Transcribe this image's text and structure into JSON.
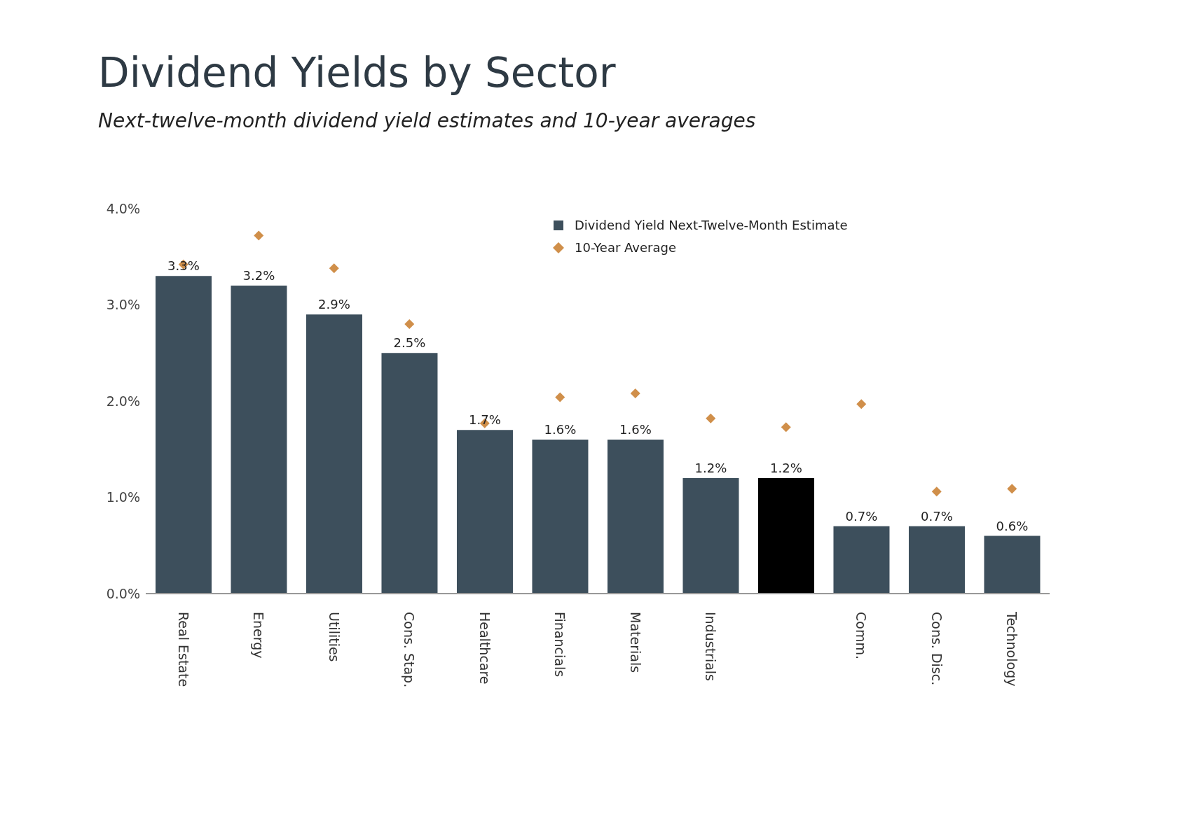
{
  "chart_data": {
    "type": "bar",
    "title": "Dividend Yields by Sector",
    "subtitle": "Next-twelve-month dividend yield estimates and 10-year averages",
    "categories": [
      "Real Estate",
      "Energy",
      "Utilities",
      "Cons. Stap.",
      "Healthcare",
      "Financials",
      "Materials",
      "Industrials",
      null,
      "Comm.",
      "Cons. Disc.",
      "Technology"
    ],
    "series": [
      {
        "name": "Dividend Yield Next-Twelve-Month Estimate",
        "color": "#3d4f5c",
        "colors": [
          "#3d4f5c",
          "#3d4f5c",
          "#3d4f5c",
          "#3d4f5c",
          "#3d4f5c",
          "#3d4f5c",
          "#3d4f5c",
          "#3d4f5c",
          "#000000",
          "#3d4f5c",
          "#3d4f5c",
          "#3d4f5c"
        ],
        "values": [
          3.3,
          3.2,
          2.9,
          2.5,
          1.7,
          1.6,
          1.6,
          1.2,
          1.2,
          0.7,
          0.7,
          0.6
        ],
        "value_labels": [
          "3.3%",
          "3.2%",
          "2.9%",
          "2.5%",
          "1.7%",
          "1.6%",
          "1.6%",
          "1.2%",
          "1.2%",
          "0.7%",
          "0.7%",
          "0.6%"
        ]
      },
      {
        "name": "10-Year Average",
        "type": "scatter",
        "color": "#d08f4a",
        "values": [
          3.42,
          3.72,
          3.38,
          2.8,
          1.77,
          2.04,
          2.08,
          1.82,
          1.73,
          1.97,
          1.06,
          1.09
        ]
      }
    ],
    "ylim": [
      0,
      4
    ],
    "yticks": [
      {
        "value": 0,
        "label": "0.0%"
      },
      {
        "value": 1,
        "label": "1.0%"
      },
      {
        "value": 2,
        "label": "2.0%"
      },
      {
        "value": 3,
        "label": "3.0%"
      },
      {
        "value": 4,
        "label": "4.0%"
      }
    ],
    "marker": "diamond",
    "legend": "top right",
    "grid": false
  }
}
